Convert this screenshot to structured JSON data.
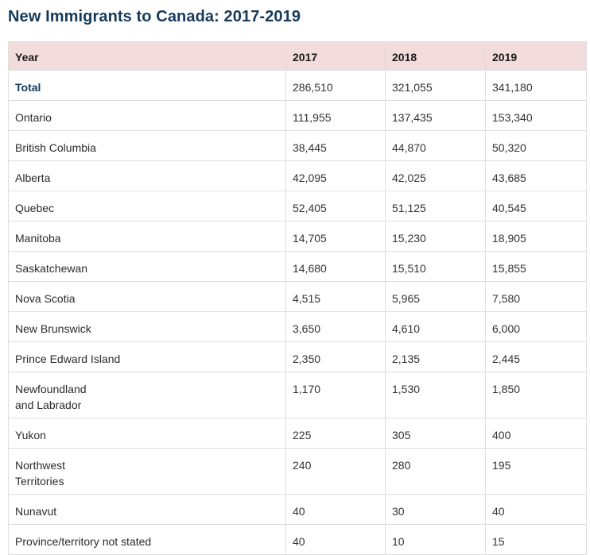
{
  "title": "New Immigrants to Canada: 2017-2019",
  "table": {
    "headers": [
      "Year",
      "2017",
      "2018",
      "2019"
    ],
    "rows": [
      {
        "label": "Total",
        "v2017": "286,510",
        "v2018": "321,055",
        "v2019": "341,180"
      },
      {
        "label": "Ontario",
        "v2017": "111,955",
        "v2018": "137,435",
        "v2019": "153,340"
      },
      {
        "label": "British Columbia",
        "v2017": "38,445",
        "v2018": "44,870",
        "v2019": "50,320"
      },
      {
        "label": "Alberta",
        "v2017": "42,095",
        "v2018": "42,025",
        "v2019": "43,685"
      },
      {
        "label": "Quebec",
        "v2017": "52,405",
        "v2018": "51,125",
        "v2019": "40,545"
      },
      {
        "label": "Manitoba",
        "v2017": "14,705",
        "v2018": "15,230",
        "v2019": "18,905"
      },
      {
        "label": "Saskatchewan",
        "v2017": "14,680",
        "v2018": "15,510",
        "v2019": "15,855"
      },
      {
        "label": "Nova Scotia",
        "v2017": "4,515",
        "v2018": "5,965",
        "v2019": "7,580"
      },
      {
        "label": "New Brunswick",
        "v2017": "3,650",
        "v2018": "4,610",
        "v2019": "6,000"
      },
      {
        "label": "Prince Edward Island",
        "v2017": "2,350",
        "v2018": "2,135",
        "v2019": "2,445"
      },
      {
        "label_line1": "Newfoundland",
        "label_line2": "and Labrador",
        "v2017": "1,170",
        "v2018": "1,530",
        "v2019": "1,850"
      },
      {
        "label": "Yukon",
        "v2017": "225",
        "v2018": "305",
        "v2019": "400"
      },
      {
        "label_line1": "Northwest",
        "label_line2": "Territories",
        "v2017": "240",
        "v2018": "280",
        "v2019": "195"
      },
      {
        "label": "Nunavut",
        "v2017": "40",
        "v2018": "30",
        "v2019": "40"
      },
      {
        "label": "Province/territory not stated",
        "v2017": "40",
        "v2018": "10",
        "v2019": "15"
      }
    ]
  }
}
